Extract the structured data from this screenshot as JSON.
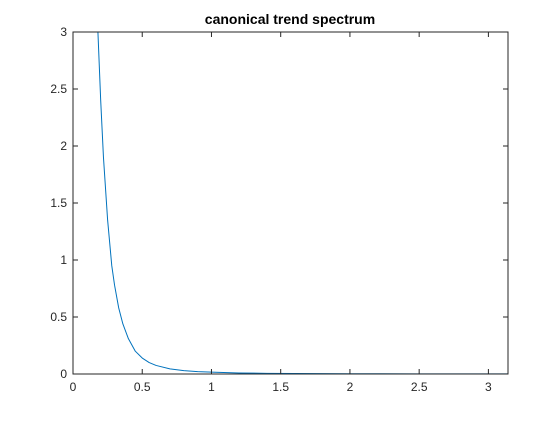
{
  "chart_data": {
    "type": "line",
    "title": "canonical trend spectrum",
    "xlabel": "",
    "ylabel": "",
    "xlim": [
      0,
      3.14159
    ],
    "ylim": [
      0,
      3
    ],
    "x_ticks": [
      0,
      0.5,
      1,
      1.5,
      2,
      2.5,
      3
    ],
    "x_tick_labels": [
      "0",
      "0.5",
      "1",
      "1.5",
      "2",
      "2.5",
      "3"
    ],
    "y_ticks": [
      0,
      0.5,
      1,
      1.5,
      2,
      2.5,
      3
    ],
    "y_tick_labels": [
      "0",
      "0.5",
      "1",
      "1.5",
      "2",
      "2.5",
      "3"
    ],
    "grid": false,
    "box": true,
    "series": [
      {
        "color": "#0072BD",
        "x": [
          0.18,
          0.2,
          0.22,
          0.25,
          0.28,
          0.3,
          0.33,
          0.36,
          0.4,
          0.45,
          0.5,
          0.55,
          0.6,
          0.7,
          0.8,
          0.9,
          1.0,
          1.2,
          1.4,
          1.6,
          1.8,
          2.0,
          2.5,
          3.0,
          3.14159
        ],
        "y": [
          3.0,
          2.4,
          1.9,
          1.35,
          0.95,
          0.78,
          0.58,
          0.44,
          0.31,
          0.2,
          0.14,
          0.1,
          0.075,
          0.045,
          0.03,
          0.021,
          0.016,
          0.009,
          0.006,
          0.004,
          0.003,
          0.002,
          0.0012,
          0.0008,
          0.0007
        ]
      }
    ]
  }
}
